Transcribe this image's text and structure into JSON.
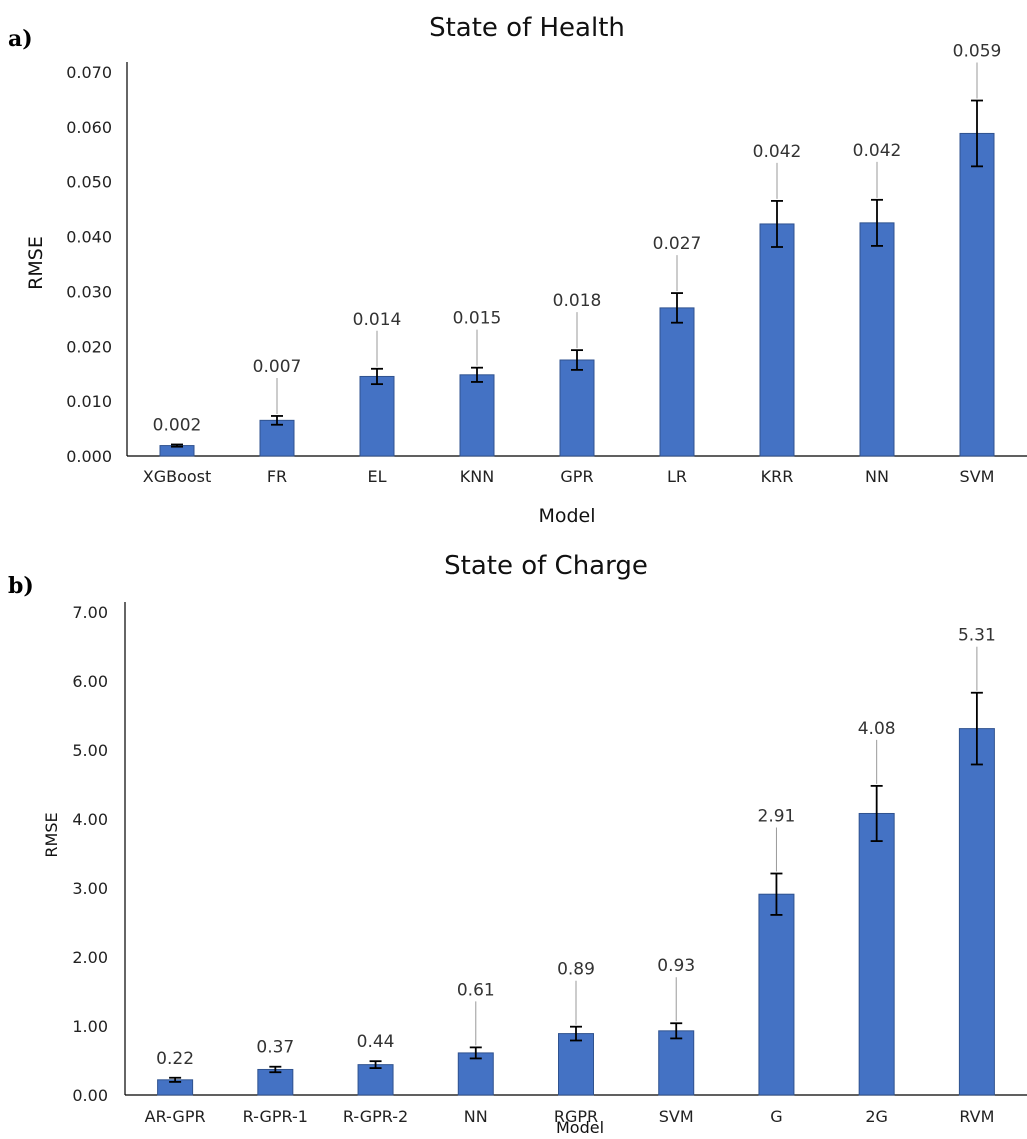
{
  "chart_data": [
    {
      "type": "bar",
      "panel_label": "a)",
      "title": "State of Health",
      "xlabel": "Model",
      "ylabel": "RMSE",
      "ylim": [
        0,
        0.07
      ],
      "y_ticks": [
        "0.000",
        "0.010",
        "0.020",
        "0.030",
        "0.040",
        "0.050",
        "0.060",
        "0.070"
      ],
      "y_tick_values": [
        0,
        0.01,
        0.02,
        0.03,
        0.04,
        0.05,
        0.06,
        0.07
      ],
      "categories": [
        "XGBoost",
        "FR",
        "EL",
        "KNN",
        "GPR",
        "LR",
        "KRR",
        "NN",
        "SVM"
      ],
      "values": [
        0.0019,
        0.0065,
        0.0145,
        0.0148,
        0.0175,
        0.027,
        0.0423,
        0.0425,
        0.0588
      ],
      "errors": [
        0.0002,
        0.0008,
        0.0014,
        0.0013,
        0.0018,
        0.0027,
        0.0042,
        0.0042,
        0.006
      ],
      "data_labels": [
        "0.002",
        "0.007",
        "0.014",
        "0.015",
        "0.018",
        "0.027",
        "0.042",
        "0.042",
        "0.059"
      ],
      "grid": false,
      "color": "#4472C4"
    },
    {
      "type": "bar",
      "panel_label": "b)",
      "title": "State of Charge",
      "xlabel": "Model",
      "ylabel": "RMSE",
      "ylim": [
        0,
        7
      ],
      "y_ticks": [
        "0.00",
        "1.00",
        "2.00",
        "3.00",
        "4.00",
        "5.00",
        "6.00",
        "7.00"
      ],
      "y_tick_values": [
        0,
        1,
        2,
        3,
        4,
        5,
        6,
        7
      ],
      "categories": [
        "AR-GPR",
        "R-GPR-1",
        "R-GPR-2",
        "NN",
        "RGPR",
        "SVM",
        "G",
        "2G",
        "RVM"
      ],
      "values": [
        0.22,
        0.37,
        0.44,
        0.61,
        0.89,
        0.93,
        2.91,
        4.08,
        5.31
      ],
      "errors": [
        0.03,
        0.04,
        0.05,
        0.08,
        0.1,
        0.11,
        0.3,
        0.4,
        0.52
      ],
      "data_labels": [
        "0.22",
        "0.37",
        "0.44",
        "0.61",
        "0.89",
        "0.93",
        "2.91",
        "4.08",
        "5.31"
      ],
      "grid": false,
      "color": "#4472C4"
    }
  ]
}
